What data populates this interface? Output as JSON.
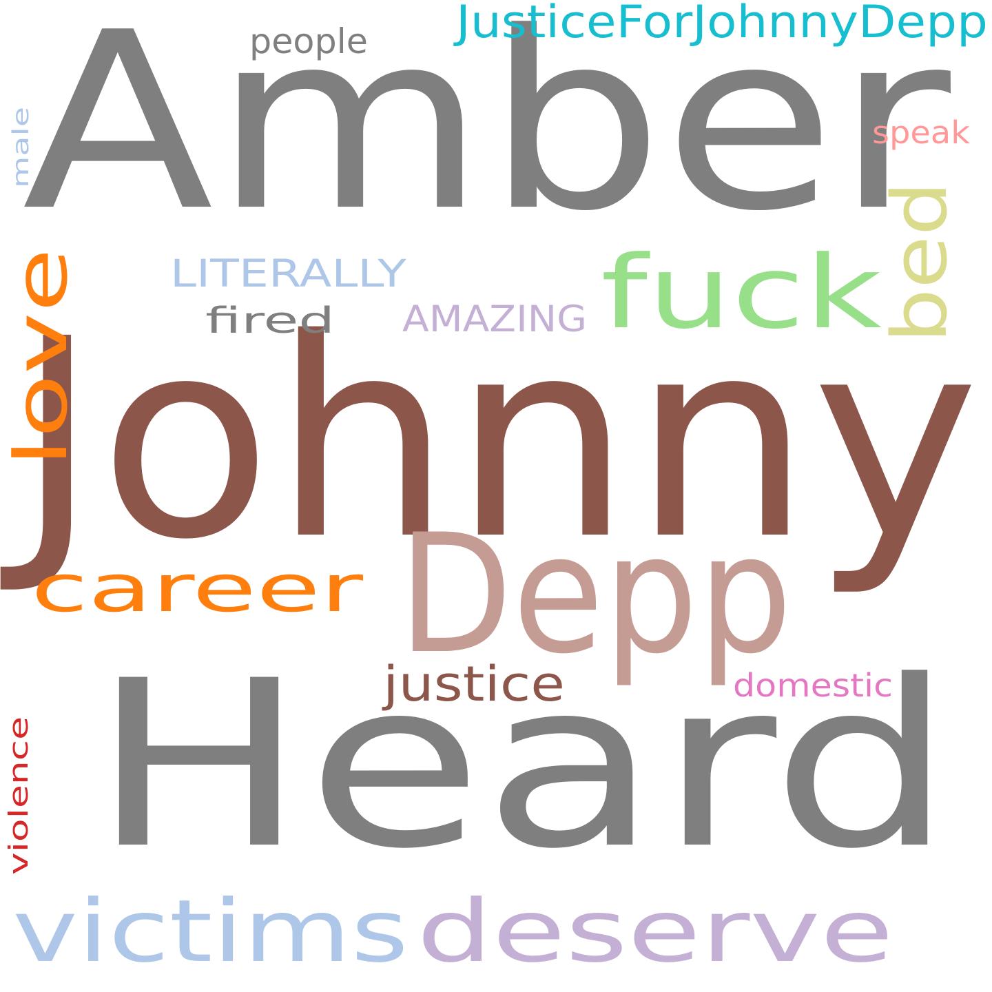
{
  "word_cloud": {
    "background": "#ffffff",
    "words": [
      {
        "key": "amber",
        "text": "Amber",
        "color": "#7f7f7f",
        "orientation": "horizontal"
      },
      {
        "key": "johnny",
        "text": "Johnny",
        "color": "#8c564b",
        "orientation": "horizontal"
      },
      {
        "key": "heard",
        "text": "Heard",
        "color": "#7f7f7f",
        "orientation": "horizontal"
      },
      {
        "key": "depp",
        "text": "Depp",
        "color": "#c49c94",
        "orientation": "horizontal"
      },
      {
        "key": "deserve",
        "text": "deserve",
        "color": "#c5b0d5",
        "orientation": "horizontal"
      },
      {
        "key": "victims",
        "text": "victims",
        "color": "#aec7e8",
        "orientation": "horizontal"
      },
      {
        "key": "career",
        "text": "career",
        "color": "#ff7f0e",
        "orientation": "horizontal"
      },
      {
        "key": "love",
        "text": "love",
        "color": "#ff7f0e",
        "orientation": "vertical"
      },
      {
        "key": "fuck",
        "text": "fuck",
        "color": "#98df8a",
        "orientation": "horizontal"
      },
      {
        "key": "bed",
        "text": "bed",
        "color": "#dbdb8d",
        "orientation": "vertical"
      },
      {
        "key": "justicefor",
        "text": "JusticeForJohnnyDepp",
        "color": "#17becf",
        "orientation": "horizontal"
      },
      {
        "key": "literally",
        "text": "LITERALLY",
        "color": "#aec7e8",
        "orientation": "horizontal"
      },
      {
        "key": "amazing",
        "text": "AMAZING",
        "color": "#c5b0d5",
        "orientation": "horizontal"
      },
      {
        "key": "fired",
        "text": "fired",
        "color": "#7f7f7f",
        "orientation": "horizontal"
      },
      {
        "key": "justice",
        "text": "justice",
        "color": "#8c564b",
        "orientation": "horizontal"
      },
      {
        "key": "domestic",
        "text": "domestic",
        "color": "#e377c2",
        "orientation": "horizontal"
      },
      {
        "key": "violence",
        "text": "violence",
        "color": "#d62728",
        "orientation": "vertical"
      },
      {
        "key": "people",
        "text": "people",
        "color": "#7f7f7f",
        "orientation": "horizontal"
      },
      {
        "key": "speak",
        "text": "speak",
        "color": "#ff9896",
        "orientation": "horizontal"
      },
      {
        "key": "male",
        "text": "male",
        "color": "#aec7e8",
        "orientation": "vertical"
      }
    ]
  }
}
